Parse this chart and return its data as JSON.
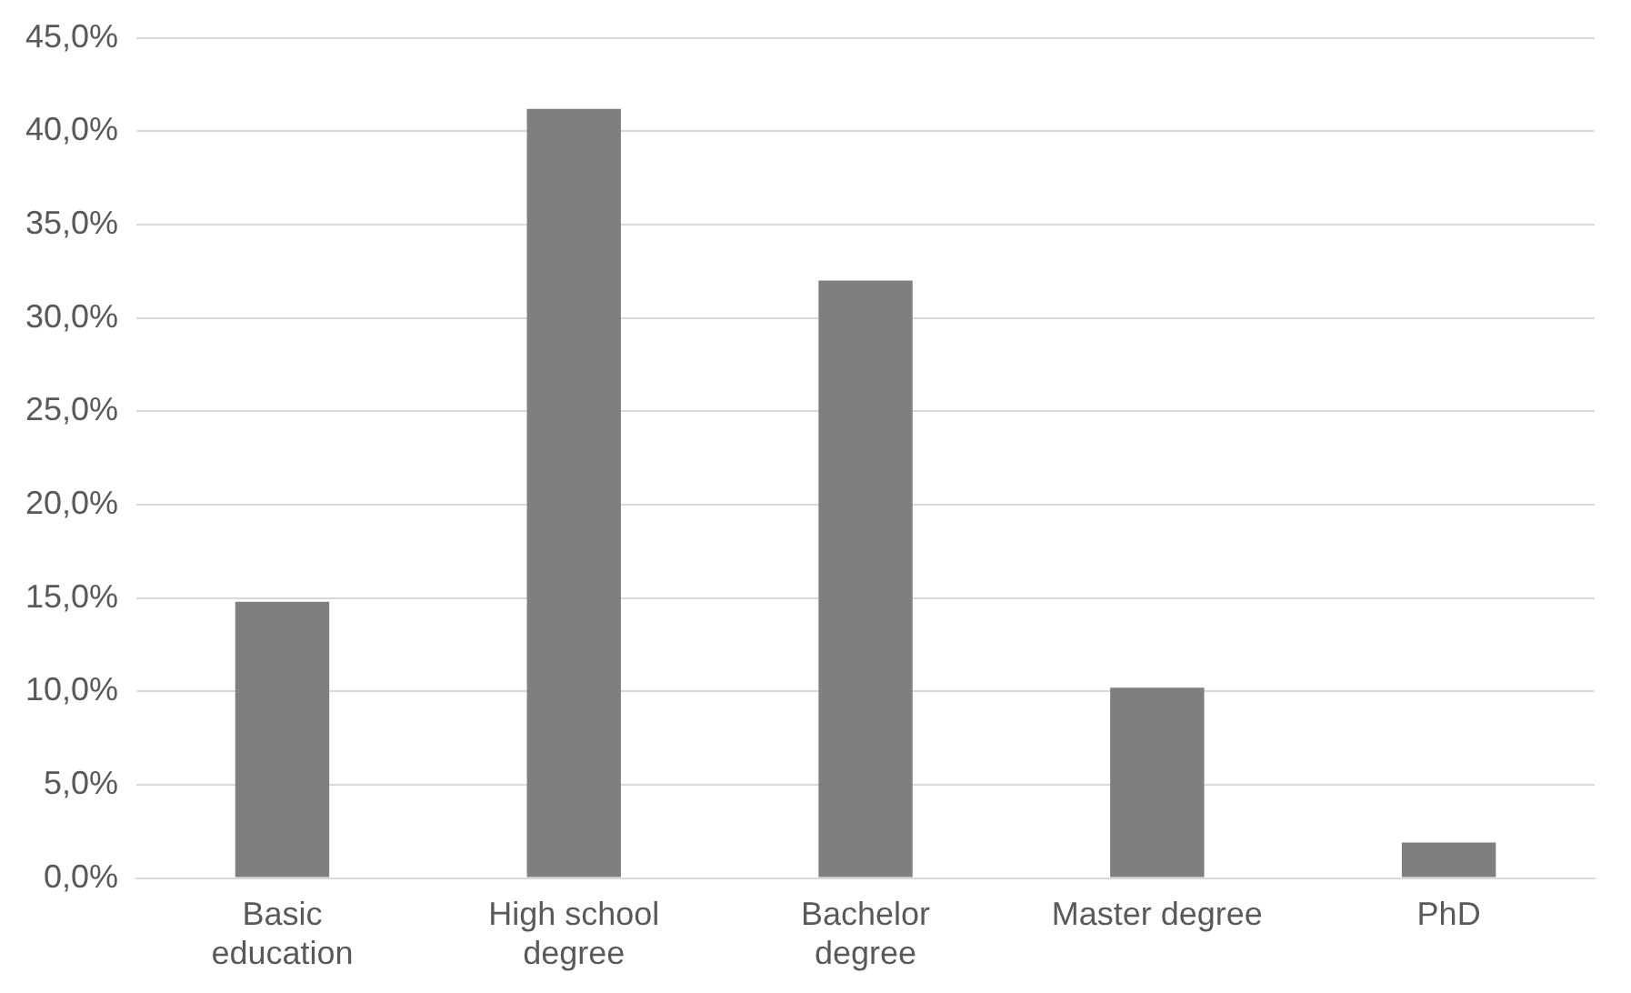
{
  "chart_data": {
    "type": "bar",
    "categories": [
      "Basic education",
      "High school degree",
      "Bachelor degree",
      "Master degree",
      "PhD"
    ],
    "values": [
      14.8,
      41.2,
      32.0,
      10.2,
      1.9
    ],
    "color": "#7f7f7f",
    "ylim": [
      0,
      45
    ],
    "yticks": [
      {
        "value": 0,
        "label": "0,0%"
      },
      {
        "value": 5,
        "label": "5,0%"
      },
      {
        "value": 10,
        "label": "10,0%"
      },
      {
        "value": 15,
        "label": "15,0%"
      },
      {
        "value": 20,
        "label": "20,0%"
      },
      {
        "value": 25,
        "label": "25,0%"
      },
      {
        "value": 30,
        "label": "30,0%"
      },
      {
        "value": 35,
        "label": "35,0%"
      },
      {
        "value": 40,
        "label": "40,0%"
      },
      {
        "value": 45,
        "label": "45,0%"
      }
    ],
    "grid": "y"
  }
}
